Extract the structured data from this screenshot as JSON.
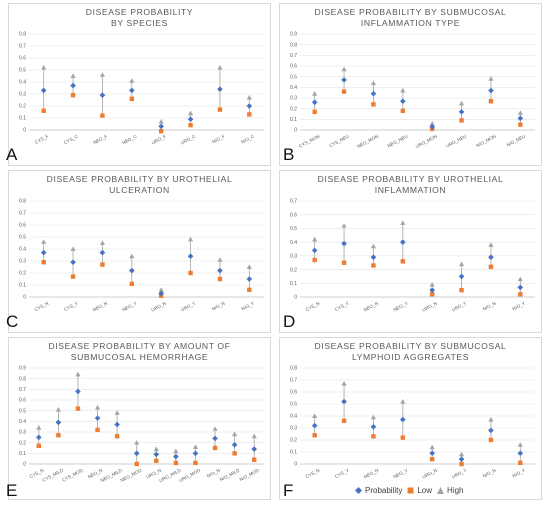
{
  "letters": [
    "A",
    "B",
    "C",
    "D",
    "E",
    "F"
  ],
  "legend": {
    "probability": "Probability",
    "low": "Low",
    "high": "High"
  },
  "colors": {
    "probability": "#4472c4",
    "low": "#ed7d31",
    "high": "#a5a5a5"
  },
  "chart_data": [
    {
      "type": "scatter",
      "title": [
        "DISEASE PROBABILITY",
        "BY SPECIES"
      ],
      "ylim": [
        0,
        0.8
      ],
      "ytick_step": 0.1,
      "grid": true,
      "categories": [
        "CYS_F",
        "CYS_C",
        "NEO_F",
        "NEO_C",
        "URO_F",
        "URO_C",
        "N/O_F",
        "N/O_C"
      ],
      "series": [
        {
          "name": "Probability",
          "values": [
            0.33,
            0.37,
            0.29,
            0.33,
            0.03,
            0.09,
            0.34,
            0.2
          ]
        },
        {
          "name": "Low",
          "values": [
            0.16,
            0.29,
            0.12,
            0.26,
            -0.01,
            0.04,
            0.17,
            0.13
          ]
        },
        {
          "name": "High",
          "values": [
            0.52,
            0.45,
            0.46,
            0.41,
            0.07,
            0.14,
            0.52,
            0.27
          ]
        }
      ]
    },
    {
      "type": "scatter",
      "title": [
        "DISEASE PROBABILITY BY SUBMUCOSAL",
        "INFLAMMATION TYPE"
      ],
      "ylim": [
        0,
        0.9
      ],
      "ytick_step": 0.1,
      "grid": true,
      "categories": [
        "CYS_MON",
        "CYS_NEU",
        "NEO_MON",
        "NEO_NEU",
        "URO_MON",
        "URO_NEU",
        "N/O_MON",
        "N/O_NEU"
      ],
      "series": [
        {
          "name": "Probability",
          "values": [
            0.26,
            0.47,
            0.34,
            0.27,
            0.03,
            0.17,
            0.37,
            0.11
          ]
        },
        {
          "name": "Low",
          "values": [
            0.17,
            0.36,
            0.24,
            0.18,
            0.01,
            0.09,
            0.27,
            0.05
          ]
        },
        {
          "name": "High",
          "values": [
            0.34,
            0.57,
            0.44,
            0.37,
            0.06,
            0.25,
            0.48,
            0.16
          ]
        }
      ]
    },
    {
      "type": "scatter",
      "title": [
        "DISEASE PROBABILITY BY UROTHELIAL",
        "ULCERATION"
      ],
      "ylim": [
        0,
        0.8
      ],
      "ytick_step": 0.1,
      "grid": true,
      "categories": [
        "CYS_N",
        "CYS_Y",
        "NEO_N",
        "NEO_Y",
        "URO_N",
        "URO_Y",
        "N/O_N",
        "N/O_Y"
      ],
      "series": [
        {
          "name": "Probability",
          "values": [
            0.37,
            0.29,
            0.37,
            0.22,
            0.03,
            0.34,
            0.22,
            0.15
          ]
        },
        {
          "name": "Low",
          "values": [
            0.29,
            0.17,
            0.27,
            0.11,
            0.01,
            0.2,
            0.15,
            0.06
          ]
        },
        {
          "name": "High",
          "values": [
            0.46,
            0.4,
            0.45,
            0.34,
            0.06,
            0.48,
            0.31,
            0.25
          ]
        }
      ]
    },
    {
      "type": "scatter",
      "title": [
        "DISEASE PROBABILITY BY UROTHELIAL",
        "INFLAMMATION"
      ],
      "ylim": [
        0,
        0.7
      ],
      "ytick_step": 0.1,
      "grid": true,
      "categories": [
        "CYS_N",
        "CYS_Y",
        "NEO_N",
        "NEO_Y",
        "URO_N",
        "URO_Y",
        "N/O_N",
        "N/O_Y"
      ],
      "series": [
        {
          "name": "Probability",
          "values": [
            0.34,
            0.39,
            0.29,
            0.4,
            0.05,
            0.15,
            0.29,
            0.07
          ]
        },
        {
          "name": "Low",
          "values": [
            0.27,
            0.25,
            0.23,
            0.26,
            0.02,
            0.05,
            0.22,
            0.02
          ]
        },
        {
          "name": "High",
          "values": [
            0.42,
            0.52,
            0.37,
            0.54,
            0.09,
            0.24,
            0.38,
            0.13
          ]
        }
      ]
    },
    {
      "type": "scatter",
      "title": [
        "DISEASE PROBABILITY BY AMOUNT OF",
        "SUBMUCOSAL HEMORRHAGE"
      ],
      "ylim": [
        0,
        0.9
      ],
      "ytick_step": 0.1,
      "grid": true,
      "categories": [
        "CYS_N",
        "CYS_MILD",
        "CYS_MOD",
        "NEO_N",
        "NEO_MILD",
        "NEO_MOD",
        "URO_N",
        "URO_MILD",
        "URO_MOD",
        "N/O_N",
        "N/O_MILD",
        "N/O_MOD"
      ],
      "series": [
        {
          "name": "Probability",
          "values": [
            0.25,
            0.39,
            0.68,
            0.43,
            0.37,
            0.1,
            0.09,
            0.07,
            0.1,
            0.24,
            0.18,
            0.14
          ]
        },
        {
          "name": "Low",
          "values": [
            0.17,
            0.27,
            0.52,
            0.32,
            0.26,
            0.0,
            0.03,
            0.01,
            0.01,
            0.15,
            0.1,
            0.04
          ]
        },
        {
          "name": "High",
          "values": [
            0.34,
            0.51,
            0.84,
            0.53,
            0.48,
            0.2,
            0.14,
            0.12,
            0.16,
            0.33,
            0.28,
            0.26
          ]
        }
      ]
    },
    {
      "type": "scatter",
      "title": [
        "DISEASE PROBABILITY BY SUBMUCOSAL",
        "LYMPHOID AGGREGATES"
      ],
      "ylim": [
        0,
        0.8
      ],
      "ytick_step": 0.1,
      "grid": true,
      "categories": [
        "CYS_N",
        "CYS_Y",
        "NEO_N",
        "NEO_Y",
        "URO_N",
        "URO_Y",
        "N/O_N",
        "N/O_Y"
      ],
      "series": [
        {
          "name": "Probability",
          "values": [
            0.32,
            0.52,
            0.31,
            0.37,
            0.09,
            0.04,
            0.28,
            0.09
          ]
        },
        {
          "name": "Low",
          "values": [
            0.24,
            0.36,
            0.23,
            0.22,
            0.04,
            0.0,
            0.2,
            0.01
          ]
        },
        {
          "name": "High",
          "values": [
            0.4,
            0.67,
            0.39,
            0.52,
            0.14,
            0.08,
            0.37,
            0.16
          ]
        }
      ]
    }
  ]
}
